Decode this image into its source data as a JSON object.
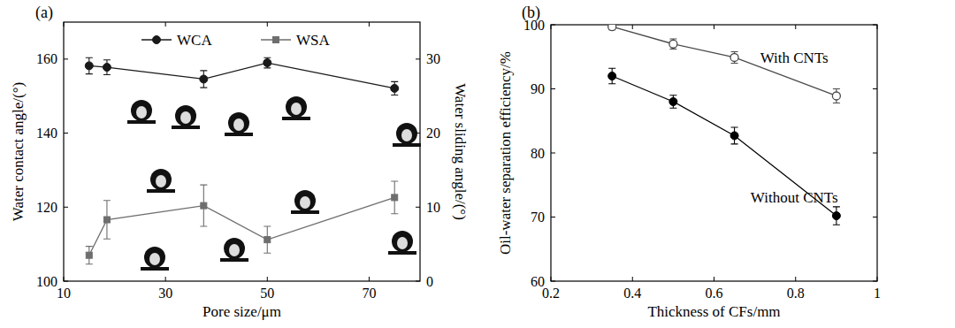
{
  "chart_data": [
    {
      "type": "line",
      "title": "(a)",
      "x_label": "Pore size/μm",
      "y_label": "Water contact angle/(°)",
      "y2_label": "Water sliding angle/(°)",
      "x": [
        15,
        18.5,
        37.5,
        50,
        75
      ],
      "xlim": [
        10,
        80
      ],
      "xticks": [
        10,
        30,
        50,
        70
      ],
      "ylim": [
        100,
        170
      ],
      "yticks": [
        100,
        120,
        140,
        160
      ],
      "y2lim": [
        0,
        35
      ],
      "y2ticks": [
        0,
        10,
        20,
        30
      ],
      "legend": "top",
      "series": [
        {
          "name": "WCA",
          "color": "#1a1a1a",
          "marker": "circle",
          "line_style": "solid",
          "values": [
            158.2,
            157.8,
            154.6,
            159,
            152.1
          ],
          "errors": [
            2.2,
            2,
            2.3,
            1.4,
            1.8
          ]
        },
        {
          "name": "WSA",
          "color": "#6e6e6e",
          "marker": "square",
          "line_style": "solid",
          "axis": "y2",
          "values": [
            3.5,
            8.3,
            10.2,
            5.6,
            11.3
          ],
          "errors": [
            1.2,
            2.6,
            2.8,
            1.8,
            2.2
          ]
        }
      ]
    },
    {
      "type": "line",
      "title": "(b)",
      "x_label": "Thickness of CFs/mm",
      "y_label": "Oil-water separation efficiency/%",
      "x": [
        0.35,
        0.5,
        0.65,
        0.9
      ],
      "xlim": [
        0.2,
        1
      ],
      "xticks": [
        0.2,
        0.4,
        0.6,
        0.8,
        1
      ],
      "ylim": [
        60,
        100
      ],
      "yticks": [
        60,
        70,
        80,
        90,
        100
      ],
      "series": [
        {
          "name": "With CNTs",
          "color": "#4a4a4a",
          "marker": "open_circle",
          "line_style": "solid",
          "values": [
            99.7,
            97,
            94.9,
            88.9
          ],
          "errors": [
            0.5,
            0.8,
            0.9,
            1.1
          ]
        },
        {
          "name": "Without CNTs",
          "color": "#000000",
          "marker": "circle",
          "line_style": "solid",
          "values": [
            92,
            88,
            82.7,
            70.2
          ],
          "errors": [
            1.2,
            1,
            1.3,
            1.4
          ]
        }
      ]
    }
  ]
}
